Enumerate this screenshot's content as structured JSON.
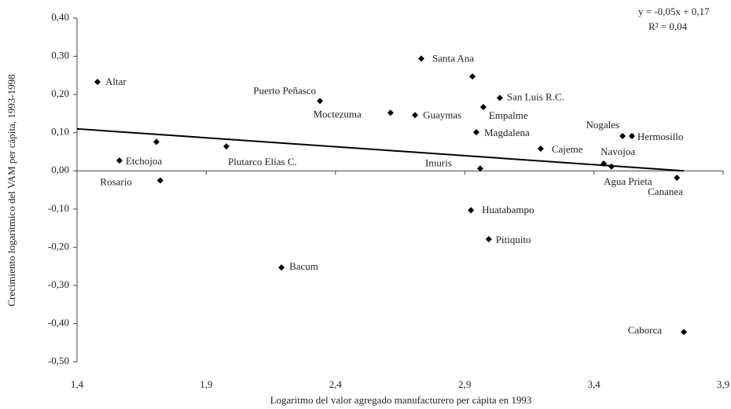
{
  "chart_data": {
    "type": "scatter",
    "x_label": "Logaritmo del valor agregado manufacturero per cápita en 1993",
    "y_label": "Crecimiento logarítmico del VAM per cápita, 1993-1998",
    "annotations": [
      "y = -0,05x + 0,17",
      "R² = 0,04"
    ],
    "labels": [
      "Altar",
      "Etchojoa",
      null,
      "Rosario",
      "Plutarco Elías C.",
      "Bacum",
      "Puerto Peñasco",
      "Moctezuma",
      "Guaymas",
      "Santa Ana",
      null,
      "Huatabampo",
      "Imuris",
      "Magdalena",
      "Empalme",
      "San Luis R.C.",
      "Pitiquito",
      "Cajeme",
      "Navojoa",
      "Agua Prieta",
      "Nogales",
      "Hermosillo",
      "Cananea",
      "Caborca"
    ],
    "x": [
      1.479,
      1.564,
      1.707,
      1.722,
      1.978,
      2.191,
      2.34,
      2.613,
      2.708,
      2.732,
      2.93,
      2.924,
      2.96,
      2.945,
      2.972,
      3.036,
      2.993,
      3.194,
      3.438,
      3.468,
      3.511,
      3.547,
      3.721,
      3.748
    ],
    "values": [
      0.233,
      0.027,
      0.076,
      -0.025,
      0.064,
      -0.253,
      0.183,
      0.152,
      0.146,
      0.294,
      0.247,
      -0.103,
      0.006,
      0.101,
      0.167,
      0.191,
      -0.179,
      0.058,
      0.019,
      0.011,
      0.091,
      0.091,
      -0.018,
      -0.422
    ],
    "color": "#000000",
    "trendline": {
      "x": [
        1.4,
        3.748
      ],
      "values": [
        0.11,
        0.0
      ],
      "color": "#000000"
    },
    "xlim": [
      1.4,
      3.9
    ],
    "xticks": [
      {
        "value": 1.4,
        "label": "1,4"
      },
      {
        "value": 1.9,
        "label": "1,9"
      },
      {
        "value": 2.4,
        "label": "2,4"
      },
      {
        "value": 2.9,
        "label": "2,9"
      },
      {
        "value": 3.4,
        "label": "3,4"
      },
      {
        "value": 3.9,
        "label": "3,9"
      }
    ],
    "ylim": [
      -0.5,
      0.4
    ],
    "yticks": [
      {
        "value": -0.5,
        "label": "-0,50"
      },
      {
        "value": -0.4,
        "label": "-0,40"
      },
      {
        "value": -0.3,
        "label": "-0,30"
      },
      {
        "value": -0.2,
        "label": "-0,20"
      },
      {
        "value": -0.1,
        "label": "-0,10"
      },
      {
        "value": 0,
        "label": "0,00"
      },
      {
        "value": 0.1,
        "label": "0,10"
      },
      {
        "value": 0.2,
        "label": "0,20"
      },
      {
        "value": 0.3,
        "label": "0,30"
      },
      {
        "value": 0.4,
        "label": "0,40"
      }
    ],
    "grid": false
  }
}
